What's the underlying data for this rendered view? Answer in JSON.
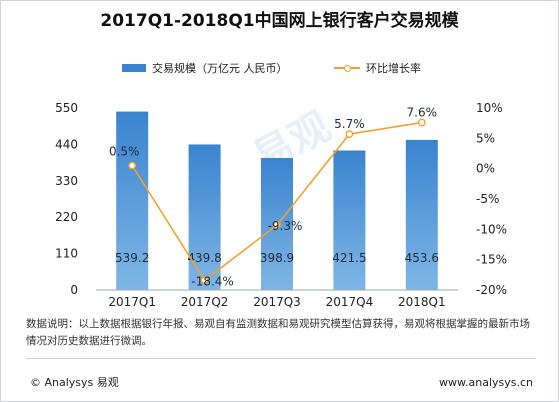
{
  "title": "2017Q1-2018Q1中国网上银行客户交易规模",
  "legend": {
    "bar_label": "交易规模（万亿元 人民币）",
    "line_label": "环比增长率"
  },
  "chart_data": {
    "type": "bar+line",
    "categories": [
      "2017Q1",
      "2017Q2",
      "2017Q3",
      "2017Q4",
      "2018Q1"
    ],
    "series": [
      {
        "name": "交易规模（万亿元 人民币）",
        "type": "bar",
        "axis": "left",
        "values": [
          539.2,
          439.8,
          398.9,
          421.5,
          453.6
        ],
        "labels": [
          "539.2",
          "439.8",
          "398.9",
          "421.5",
          "453.6"
        ]
      },
      {
        "name": "环比增长率",
        "type": "line",
        "axis": "right",
        "values": [
          0.5,
          -18.4,
          -9.3,
          5.7,
          7.6
        ],
        "labels": [
          "0.5%",
          "-18.4%",
          "-9.3%",
          "5.7%",
          "7.6%"
        ]
      }
    ],
    "y_left": {
      "min": 0,
      "max": 550,
      "ticks": [
        0,
        110,
        220,
        330,
        440,
        550
      ],
      "tick_labels": [
        "0",
        "110",
        "220",
        "330",
        "440",
        "550"
      ]
    },
    "y_right": {
      "min": -20,
      "max": 10,
      "ticks": [
        10,
        5,
        0,
        -5,
        -10,
        -15,
        -20
      ],
      "tick_labels": [
        "10%",
        "5%",
        "0%",
        "-5%",
        "-10%",
        "-15%",
        "-20%"
      ]
    },
    "colors": {
      "bar": "#3a84cf",
      "line": "#f2a12c"
    }
  },
  "watermark": "易观",
  "note": "数据说明：以上数据根据银行年报、易观自有监测数据和易观研究模型估算获得，易观将根据掌握的最新市场情况对历史数据进行微调。",
  "footer": {
    "copyright": "© Analysys 易观",
    "website": "www.analysys.cn"
  }
}
